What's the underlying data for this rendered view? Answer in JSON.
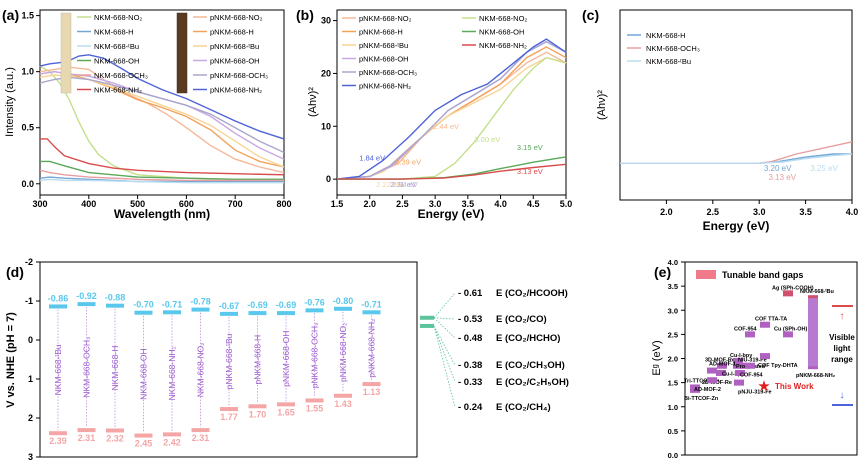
{
  "panels": {
    "a": "(a)",
    "b": "(b)",
    "c": "(c)",
    "d": "(d)",
    "e": "(e)"
  },
  "colors": {
    "nkm_no2": "#c4e08a",
    "nkm_h": "#73a7d6",
    "nkm_tbu": "#b9dcf0",
    "nkm_oh": "#5aa85a",
    "nkm_och3": "#e89ea0",
    "nkm_nh2": "#d84c4c",
    "p_no2": "#f6b898",
    "p_h": "#f4a25a",
    "p_tbu": "#f7d496",
    "p_oh": "#c8a8e2",
    "p_och3": "#a8a8ce",
    "p_nh2": "#4e63d8",
    "cbm": "#59c8ec",
    "vbm": "#f4a6a6",
    "name": "#9b59d0",
    "line": "#5cc49c"
  },
  "chart_data": [
    {
      "panel": "a",
      "type": "line",
      "xlabel": "Wavelength (nm)",
      "ylabel": "Intensity (a.u.)",
      "xlim": [
        300,
        800
      ],
      "ylim": [
        -0.1,
        1.55
      ],
      "xticks": [
        "300",
        "400",
        "500",
        "600",
        "700",
        "800"
      ],
      "yticks": [
        "0.0",
        "0.5",
        "1.0",
        "1.5"
      ],
      "legend_left": [
        "NKM-668-NO₂",
        "NKM-668-H",
        "NKM-668-ᵗBu",
        "NKM-668-OH",
        "NKM-668-OCH₃",
        "NKM-668-NH₂"
      ],
      "legend_right": [
        "pNKM-668-NO₂",
        "pNKM-668-H",
        "pNKM-668-ᵗBu",
        "pNKM-668-OH",
        "pNKM-668-OCH₃",
        "pNKM-668-NH₂"
      ],
      "series": [
        {
          "name": "NKM-668-NO₂",
          "color": "#c4e08a",
          "x": [
            300,
            320,
            340,
            360,
            380,
            400,
            420,
            450,
            500,
            600,
            700,
            800
          ],
          "y": [
            1.05,
            1.0,
            0.9,
            0.75,
            0.55,
            0.38,
            0.26,
            0.16,
            0.08,
            0.05,
            0.04,
            0.04
          ]
        },
        {
          "name": "NKM-668-H",
          "color": "#73a7d6",
          "x": [
            300,
            320,
            350,
            400,
            500,
            600,
            700,
            800
          ],
          "y": [
            0.05,
            0.06,
            0.05,
            0.04,
            0.02,
            0.02,
            0.02,
            0.02
          ]
        },
        {
          "name": "NKM-668-ᵗBu",
          "color": "#b9dcf0",
          "x": [
            300,
            320,
            350,
            400,
            500,
            600,
            700,
            800
          ],
          "y": [
            0.03,
            0.04,
            0.03,
            0.03,
            0.02,
            0.01,
            0.01,
            0.01
          ]
        },
        {
          "name": "NKM-668-OH",
          "color": "#5aa85a",
          "x": [
            300,
            320,
            350,
            400,
            500,
            600,
            700,
            800
          ],
          "y": [
            0.2,
            0.2,
            0.16,
            0.1,
            0.06,
            0.05,
            0.04,
            0.04
          ]
        },
        {
          "name": "NKM-668-OCH₃",
          "color": "#e89ea0",
          "x": [
            300,
            320,
            350,
            400,
            500,
            600,
            700,
            800
          ],
          "y": [
            0.12,
            0.1,
            0.08,
            0.06,
            0.04,
            0.03,
            0.03,
            0.03
          ]
        },
        {
          "name": "NKM-668-NH₂",
          "color": "#d84c4c",
          "x": [
            300,
            315,
            330,
            350,
            400,
            450,
            500,
            600,
            700,
            800
          ],
          "y": [
            0.4,
            0.4,
            0.33,
            0.25,
            0.18,
            0.14,
            0.12,
            0.1,
            0.09,
            0.08
          ]
        },
        {
          "name": "pNKM-668-NO₂",
          "color": "#f6b898",
          "x": [
            300,
            330,
            360,
            400,
            440,
            480,
            520,
            560,
            600,
            650,
            700,
            750,
            800
          ],
          "y": [
            1.0,
            1.02,
            1.04,
            1.02,
            0.9,
            0.8,
            0.72,
            0.62,
            0.5,
            0.34,
            0.22,
            0.15,
            0.1
          ]
        },
        {
          "name": "pNKM-668-H",
          "color": "#f4a25a",
          "x": [
            300,
            330,
            360,
            400,
            450,
            500,
            550,
            600,
            650,
            700,
            750,
            800
          ],
          "y": [
            0.98,
            1.0,
            0.98,
            0.93,
            0.85,
            0.75,
            0.68,
            0.6,
            0.48,
            0.3,
            0.2,
            0.15
          ]
        },
        {
          "name": "pNKM-668-ᵗBu",
          "color": "#f7d496",
          "x": [
            300,
            330,
            360,
            400,
            450,
            500,
            550,
            600,
            650,
            700,
            750,
            800
          ],
          "y": [
            0.95,
            0.97,
            0.96,
            0.93,
            0.86,
            0.78,
            0.7,
            0.62,
            0.52,
            0.38,
            0.24,
            0.15
          ]
        },
        {
          "name": "pNKM-668-OH",
          "color": "#c8a8e2",
          "x": [
            300,
            330,
            360,
            400,
            450,
            500,
            550,
            600,
            650,
            700,
            750,
            800
          ],
          "y": [
            0.98,
            1.0,
            0.98,
            0.96,
            0.9,
            0.82,
            0.76,
            0.7,
            0.6,
            0.45,
            0.32,
            0.22
          ]
        },
        {
          "name": "pNKM-668-OCH₃",
          "color": "#a8a8ce",
          "x": [
            300,
            330,
            360,
            400,
            450,
            500,
            550,
            600,
            650,
            700,
            750,
            800
          ],
          "y": [
            0.9,
            0.93,
            0.95,
            0.93,
            0.88,
            0.82,
            0.76,
            0.7,
            0.62,
            0.5,
            0.38,
            0.28
          ]
        },
        {
          "name": "pNKM-668-NH₂",
          "color": "#4e63d8",
          "x": [
            300,
            320,
            340,
            360,
            380,
            400,
            430,
            470,
            500,
            550,
            600,
            650,
            700,
            750,
            800
          ],
          "y": [
            1.05,
            1.07,
            1.08,
            1.1,
            1.14,
            1.15,
            1.12,
            1.02,
            0.94,
            0.84,
            0.76,
            0.66,
            0.56,
            0.47,
            0.4
          ]
        }
      ]
    },
    {
      "panel": "b",
      "type": "line",
      "xlabel": "Energy (eV)",
      "ylabel": "(Ahν)²",
      "xlim": [
        1.5,
        5.0
      ],
      "ylim": [
        -3,
        32
      ],
      "xticks": [
        "1.5",
        "2.0",
        "2.5",
        "3.0",
        "3.5",
        "4.0",
        "4.5",
        "5.0"
      ],
      "yticks": [
        "0",
        "10",
        "20",
        "30"
      ],
      "legend_left": [
        "pNKM-668-NO₂",
        "pNKM-668-H",
        "pNKM-668-ᵗBu",
        "pNKM-668-OH",
        "pNKM-668-OCH₃",
        "pNKM-668-NH₂"
      ],
      "legend_right": [
        "NKM-668-NO₂",
        "NKM-668-OH",
        "NKM-668-NH₂"
      ],
      "annotations": [
        {
          "text": "1.84 eV",
          "x": 1.84,
          "y": 3.5,
          "color": "#4e63d8"
        },
        {
          "text": "2.31 eV",
          "x": 2.31,
          "y": -1.5,
          "color": "#a8a8ce"
        },
        {
          "text": "2.34 eV",
          "x": 2.34,
          "y": -1.5,
          "color": "#c8a8e2"
        },
        {
          "text": "2.22 eV",
          "x": 2.1,
          "y": -1.5,
          "color": "#f7d496"
        },
        {
          "text": "2.39 eV",
          "x": 2.39,
          "y": 2.8,
          "color": "#f4a25a"
        },
        {
          "text": "2.44 eV",
          "x": 2.97,
          "y": 9.5,
          "color": "#f6b898"
        },
        {
          "text": "3.00 eV",
          "x": 3.6,
          "y": 7.0,
          "color": "#c4e08a"
        },
        {
          "text": "3.15 eV",
          "x": 4.25,
          "y": 5.5,
          "color": "#5aa85a"
        },
        {
          "text": "3.13 eV",
          "x": 4.25,
          "y": 1.0,
          "color": "#d84c4c"
        }
      ],
      "series": [
        {
          "name": "pNKM-668-NO₂",
          "color": "#f6b898",
          "x": [
            1.5,
            2.0,
            2.44,
            2.8,
            3.2,
            3.6,
            4.0,
            4.4,
            4.7,
            5.0
          ],
          "y": [
            0,
            0.5,
            3,
            8,
            12,
            15,
            18,
            22,
            24,
            22
          ]
        },
        {
          "name": "pNKM-668-H",
          "color": "#f4a25a",
          "x": [
            1.5,
            2.0,
            2.39,
            2.8,
            3.2,
            3.6,
            4.0,
            4.4,
            4.7,
            5.0
          ],
          "y": [
            0,
            0.5,
            3,
            8,
            12,
            15,
            18,
            23,
            25,
            23
          ]
        },
        {
          "name": "pNKM-668-ᵗBu",
          "color": "#f7d496",
          "x": [
            1.5,
            2.0,
            2.22,
            2.7,
            3.2,
            3.6,
            4.0,
            4.4,
            4.7,
            5.0
          ],
          "y": [
            0,
            0.5,
            1.5,
            7,
            12,
            14.5,
            17,
            21,
            23,
            22
          ]
        },
        {
          "name": "pNKM-668-OH",
          "color": "#c8a8e2",
          "x": [
            1.5,
            2.0,
            2.34,
            2.8,
            3.2,
            3.6,
            4.0,
            4.4,
            4.7,
            5.0
          ],
          "y": [
            0,
            0.5,
            2.5,
            8,
            13,
            16,
            19,
            24,
            26,
            24
          ]
        },
        {
          "name": "pNKM-668-OCH₃",
          "color": "#a8a8ce",
          "x": [
            1.5,
            2.0,
            2.31,
            2.8,
            3.2,
            3.6,
            4.0,
            4.4,
            4.7,
            5.0
          ],
          "y": [
            0,
            0.5,
            2.5,
            8,
            13,
            16,
            19,
            24,
            26,
            24
          ]
        },
        {
          "name": "pNKM-668-NH₂",
          "color": "#4e63d8",
          "x": [
            1.5,
            1.84,
            2.2,
            2.6,
            3.0,
            3.4,
            3.8,
            4.2,
            4.5,
            4.7,
            5.0
          ],
          "y": [
            0,
            0.5,
            3.5,
            8,
            13,
            16,
            18,
            22,
            25,
            26.5,
            24
          ]
        },
        {
          "name": "NKM-668-NO₂",
          "color": "#c4e08a",
          "x": [
            1.5,
            2.5,
            3.0,
            3.3,
            3.6,
            3.9,
            4.2,
            4.5,
            4.7,
            5.0
          ],
          "y": [
            0,
            0,
            0.5,
            3,
            7,
            12,
            17,
            21,
            23,
            22
          ]
        },
        {
          "name": "NKM-668-OH",
          "color": "#5aa85a",
          "x": [
            1.5,
            2.5,
            3.15,
            3.6,
            4.0,
            4.5,
            5.0
          ],
          "y": [
            0,
            0,
            0.3,
            1.0,
            2.0,
            3.2,
            4.2
          ]
        },
        {
          "name": "NKM-668-NH₂",
          "color": "#d84c4c",
          "x": [
            1.5,
            2.5,
            3.13,
            3.6,
            4.0,
            4.5,
            5.0
          ],
          "y": [
            0,
            0,
            0.2,
            0.8,
            1.5,
            2.2,
            2.8
          ]
        }
      ]
    },
    {
      "panel": "c",
      "type": "line",
      "xlabel": "Energy (eV)",
      "ylabel": "(Ahν)²",
      "xlim": [
        1.5,
        4.0
      ],
      "ylim": [
        -0.12,
        0.5
      ],
      "xticks": [
        "2.0",
        "2.5",
        "3.0",
        "3.5",
        "4.0"
      ],
      "legend": [
        "NKM-668-H",
        "NKM-668-OCH₃",
        "NKM-668-ᵗBu"
      ],
      "annotations": [
        {
          "text": "3.20 eV",
          "x": 3.05,
          "y": -0.025,
          "color": "#73a7d6"
        },
        {
          "text": "3.13 eV",
          "x": 3.1,
          "y": -0.055,
          "color": "#e89ea0"
        },
        {
          "text": "3.25 eV",
          "x": 3.55,
          "y": -0.025,
          "color": "#b9dcf0"
        }
      ],
      "series": [
        {
          "name": "NKM-668-H",
          "color": "#73a7d6",
          "x": [
            1.5,
            3.0,
            3.2,
            3.5,
            3.8,
            4.0
          ],
          "y": [
            0,
            0,
            0.005,
            0.02,
            0.03,
            0.03
          ]
        },
        {
          "name": "NKM-668-OCH₃",
          "color": "#e89ea0",
          "x": [
            1.5,
            3.0,
            3.13,
            3.4,
            3.7,
            4.0
          ],
          "y": [
            0,
            0,
            0.005,
            0.03,
            0.05,
            0.07
          ]
        },
        {
          "name": "NKM-668-ᵗBu",
          "color": "#b9dcf0",
          "x": [
            1.5,
            3.0,
            3.25,
            3.5,
            3.8,
            4.0
          ],
          "y": [
            0,
            0,
            0.004,
            0.015,
            0.025,
            0.03
          ]
        }
      ]
    },
    {
      "panel": "d",
      "type": "bar",
      "ylabel": "V vs. NHE (pH = 7)",
      "ylim": [
        -2,
        3
      ],
      "yticks": [
        "-2",
        "-1",
        "0",
        "1",
        "2",
        "3"
      ],
      "categories": [
        "NKM-668-ᵗBu",
        "NKM-668-OCH₃",
        "NKM-668-H",
        "NKM-668-OH",
        "NKM-668-NH₂",
        "NKM-668-NO₂",
        "pNKM-668-ᵗBu",
        "pNKM-668-H",
        "pNKM-668-OH",
        "pNKM-668-OCH₃",
        "pNKM-668-NO₂",
        "pNKM-668-NH₂"
      ],
      "cbm": [
        -0.86,
        -0.92,
        -0.88,
        -0.7,
        -0.71,
        -0.78,
        -0.67,
        -0.69,
        -0.69,
        -0.76,
        -0.8,
        -0.71
      ],
      "vbm": [
        2.39,
        2.31,
        2.32,
        2.45,
        2.42,
        2.31,
        1.77,
        1.7,
        1.65,
        1.55,
        1.43,
        1.13
      ],
      "cbm_labels": [
        "-0.86",
        "-0.92",
        "-0.88",
        "-0.70",
        "-0.71",
        "-0.78",
        "-0.67",
        "-0.69",
        "-0.69",
        "-0.76",
        "-0.80",
        "-0.71"
      ],
      "vbm_labels": [
        "2.39",
        "2.31",
        "2.32",
        "2.45",
        "2.42",
        "2.31",
        "1.77",
        "1.70",
        "1.65",
        "1.55",
        "1.43",
        "1.13"
      ],
      "potentials": [
        {
          "value": -0.61,
          "label": "- 0.61",
          "couple": "E (CO₂/HCOOH)"
        },
        {
          "value": -0.53,
          "label": "- 0.53",
          "couple": "E (CO₂/CO)"
        },
        {
          "value": -0.48,
          "label": "- 0.48",
          "couple": "E (CO₂/HCHO)"
        },
        {
          "value": -0.38,
          "label": "- 0.38",
          "couple": "E (CO₂/CH₃OH)"
        },
        {
          "value": -0.33,
          "label": "- 0.33",
          "couple": "E (CO₂/C₂H₅OH)"
        },
        {
          "value": -0.24,
          "label": "- 0.24",
          "couple": "E (CO₂/CH₄)"
        }
      ]
    },
    {
      "panel": "e",
      "type": "bar",
      "ylabel": "Eᵍ (eV)",
      "ylim": [
        0.0,
        4.0
      ],
      "yticks": [
        "0.0",
        "0.5",
        "1.0",
        "1.5",
        "2.0",
        "2.5",
        "3.0",
        "3.5",
        "4.0"
      ],
      "legend": "Tunable band gaps",
      "this_work": "This Work",
      "visible_range": [
        "Visible",
        "light",
        "range"
      ],
      "items": [
        {
          "label": "Tri-TTCOF-Zn",
          "value": 1.4
        },
        {
          "label": "Bi-TTCOF-Zn",
          "value": 1.35
        },
        {
          "label": "3D-MOF-Re",
          "value": 1.85
        },
        {
          "label": "2D-MOF-Re",
          "value": 1.7
        },
        {
          "label": "Cu-I-bpy",
          "value": 1.95
        },
        {
          "label": "Cu-I-bpy",
          "value": 1.85
        },
        {
          "label": "AD-MOF-1",
          "value": 1.75
        },
        {
          "label": "AD-MOF-2",
          "value": 1.55
        },
        {
          "label": "NIU-319-Fe",
          "value": 1.85
        },
        {
          "label": "Protonated",
          "value": 1.7
        },
        {
          "label": "pNJU-319-Fe",
          "value": 1.5
        },
        {
          "label": "COF-954",
          "value": 2.5
        },
        {
          "label": "COF-954",
          "value": 1.85
        },
        {
          "label": "COF TTA-TA",
          "value": 2.7
        },
        {
          "label": "COF Tpy-DHTA",
          "value": 2.05
        },
        {
          "label": "Ag (SPh-COOH)",
          "value": 3.35
        },
        {
          "label": "Cu (SPh-OH)",
          "value": 2.5
        },
        {
          "label": "NKM-668-ᵗBu",
          "value": 3.25
        },
        {
          "label": "pNKM-668-NH₂",
          "value": 1.84
        }
      ],
      "visible_range_eV": [
        1.6,
        3.1
      ]
    }
  ]
}
